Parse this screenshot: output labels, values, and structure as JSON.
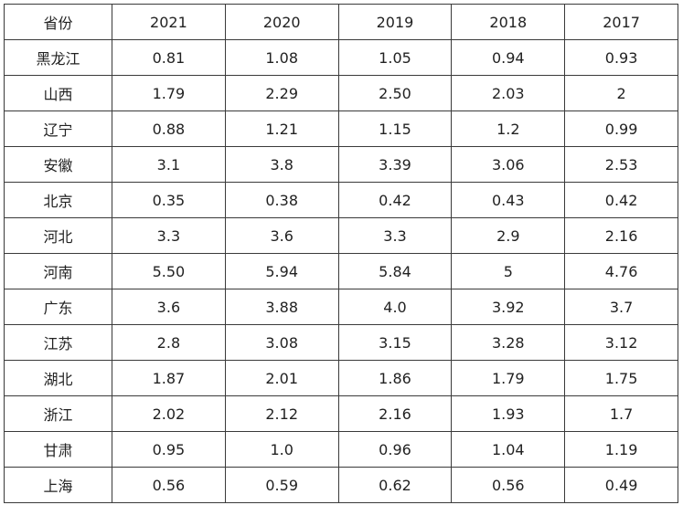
{
  "table": {
    "headers": [
      "省份",
      "2021",
      "2020",
      "2019",
      "2018",
      "2017"
    ],
    "rows": [
      [
        "黑龙江",
        "0.81",
        "1.08",
        "1.05",
        "0.94",
        "0.93"
      ],
      [
        "山西",
        "1.79",
        "2.29",
        "2.50",
        "2.03",
        "2"
      ],
      [
        "辽宁",
        "0.88",
        "1.21",
        "1.15",
        "1.2",
        "0.99"
      ],
      [
        "安徽",
        "3.1",
        "3.8",
        "3.39",
        "3.06",
        "2.53"
      ],
      [
        "北京",
        "0.35",
        "0.38",
        "0.42",
        "0.43",
        "0.42"
      ],
      [
        "河北",
        "3.3",
        "3.6",
        "3.3",
        "2.9",
        "2.16"
      ],
      [
        "河南",
        "5.50",
        "5.94",
        "5.84",
        "5",
        "4.76"
      ],
      [
        "广东",
        "3.6",
        "3.88",
        "4.0",
        "3.92",
        "3.7"
      ],
      [
        "江苏",
        "2.8",
        "3.08",
        "3.15",
        "3.28",
        "3.12"
      ],
      [
        "湖北",
        "1.87",
        "2.01",
        "1.86",
        "1.79",
        "1.75"
      ],
      [
        "浙江",
        "2.02",
        "2.12",
        "2.16",
        "1.93",
        "1.7"
      ],
      [
        "甘肃",
        "0.95",
        "1.0",
        "0.96",
        "1.04",
        "1.19"
      ],
      [
        "上海",
        "0.56",
        "0.59",
        "0.62",
        "0.56",
        "0.49"
      ]
    ]
  }
}
